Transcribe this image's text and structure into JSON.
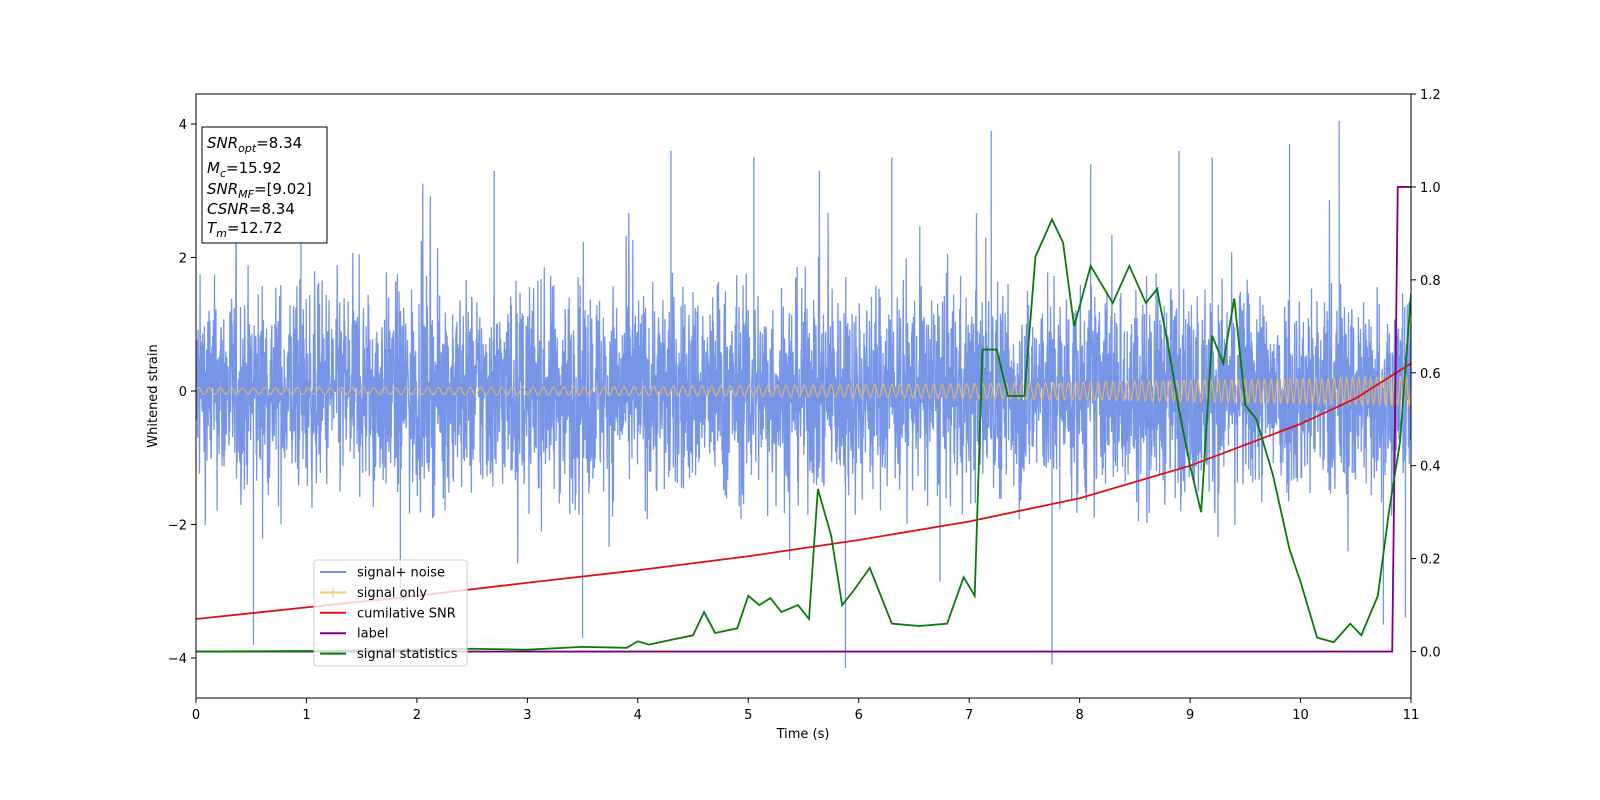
{
  "chart_data": {
    "type": "line",
    "title": "",
    "xlabel": "Time (s)",
    "ylabel": "Whitened strain",
    "y2label": "",
    "xlim": [
      0,
      11
    ],
    "ylim": [
      -4.6,
      4.45
    ],
    "y2lim": [
      -0.1,
      1.2
    ],
    "xticks": [
      "0",
      "1",
      "2",
      "3",
      "4",
      "5",
      "6",
      "7",
      "8",
      "9",
      "10",
      "11"
    ],
    "yticks": [
      "−4",
      "−2",
      "0",
      "2",
      "4"
    ],
    "y2ticks": [
      "0.0",
      "0.2",
      "0.4",
      "0.6",
      "0.8",
      "1.0",
      "1.2"
    ],
    "grid": false,
    "legend_position": "lower-left",
    "annotation": {
      "lines": [
        {
          "sym": "SNR",
          "sub": "opt",
          "val": "=8.34"
        },
        {
          "sym": "M",
          "sub": "c",
          "val": "=15.92"
        },
        {
          "sym": "SNR",
          "sub": "MF",
          "val": "=[9.02]"
        },
        {
          "sym": "CSNR",
          "sub": "",
          "val": "=8.34"
        },
        {
          "sym": "T",
          "sub": "m",
          "val": "=12.72"
        }
      ]
    },
    "series": [
      {
        "name": "signal+ noise",
        "axis": "left",
        "color": "#6f8fe6",
        "kind": "noise",
        "envelope": {
          "typical_min": -1.8,
          "typical_max": 1.8
        },
        "spikes": [
          [
            0.52,
            -3.8
          ],
          [
            0.95,
            2.6
          ],
          [
            1.85,
            -3.0
          ],
          [
            2.7,
            3.3
          ],
          [
            3.5,
            -3.7
          ],
          [
            4.3,
            3.6
          ],
          [
            5.05,
            3.5
          ],
          [
            5.88,
            -4.15
          ],
          [
            6.3,
            3.5
          ],
          [
            7.2,
            3.9
          ],
          [
            7.75,
            -4.1
          ],
          [
            8.1,
            3.4
          ],
          [
            8.9,
            3.6
          ],
          [
            9.2,
            3.5
          ],
          [
            9.9,
            3.7
          ],
          [
            10.35,
            4.05
          ],
          [
            10.75,
            -3.5
          ],
          [
            10.95,
            -3.4
          ]
        ]
      },
      {
        "name": "signal only",
        "axis": "left",
        "color": "#f5b85a",
        "kind": "chirp",
        "amplitude_start": 0.05,
        "amplitude_end": 0.22
      },
      {
        "name": "cumilative SNR",
        "axis": "right",
        "color": "#e01010",
        "points": [
          [
            0,
            0.07
          ],
          [
            1,
            0.095
          ],
          [
            2,
            0.12
          ],
          [
            3,
            0.148
          ],
          [
            4,
            0.175
          ],
          [
            5,
            0.205
          ],
          [
            6,
            0.24
          ],
          [
            7,
            0.28
          ],
          [
            8,
            0.33
          ],
          [
            9,
            0.4
          ],
          [
            10,
            0.49
          ],
          [
            10.5,
            0.545
          ],
          [
            11,
            0.62
          ]
        ]
      },
      {
        "name": "label",
        "axis": "right",
        "color": "#800080",
        "points": [
          [
            0,
            0.0
          ],
          [
            10.83,
            0.0
          ],
          [
            10.88,
            1.0
          ],
          [
            11,
            1.0
          ]
        ]
      },
      {
        "name": "signal statistics",
        "axis": "right",
        "color": "#0a7a0a",
        "points": [
          [
            0,
            0.0
          ],
          [
            1,
            0.001
          ],
          [
            2,
            0.004
          ],
          [
            2.5,
            0.006
          ],
          [
            3,
            0.004
          ],
          [
            3.5,
            0.01
          ],
          [
            3.9,
            0.008
          ],
          [
            4.0,
            0.022
          ],
          [
            4.1,
            0.015
          ],
          [
            4.3,
            0.025
          ],
          [
            4.5,
            0.035
          ],
          [
            4.6,
            0.085
          ],
          [
            4.7,
            0.04
          ],
          [
            4.9,
            0.05
          ],
          [
            5.0,
            0.12
          ],
          [
            5.1,
            0.1
          ],
          [
            5.2,
            0.115
          ],
          [
            5.3,
            0.085
          ],
          [
            5.45,
            0.1
          ],
          [
            5.55,
            0.07
          ],
          [
            5.63,
            0.35
          ],
          [
            5.75,
            0.25
          ],
          [
            5.85,
            0.1
          ],
          [
            5.95,
            0.13
          ],
          [
            6.1,
            0.18
          ],
          [
            6.3,
            0.06
          ],
          [
            6.55,
            0.055
          ],
          [
            6.8,
            0.06
          ],
          [
            6.95,
            0.16
          ],
          [
            7.05,
            0.12
          ],
          [
            7.12,
            0.65
          ],
          [
            7.25,
            0.65
          ],
          [
            7.35,
            0.55
          ],
          [
            7.5,
            0.55
          ],
          [
            7.6,
            0.85
          ],
          [
            7.75,
            0.93
          ],
          [
            7.85,
            0.88
          ],
          [
            7.95,
            0.7
          ],
          [
            8.1,
            0.83
          ],
          [
            8.3,
            0.75
          ],
          [
            8.45,
            0.83
          ],
          [
            8.6,
            0.75
          ],
          [
            8.7,
            0.78
          ],
          [
            8.8,
            0.66
          ],
          [
            8.9,
            0.52
          ],
          [
            9.0,
            0.4
          ],
          [
            9.1,
            0.3
          ],
          [
            9.2,
            0.68
          ],
          [
            9.3,
            0.62
          ],
          [
            9.4,
            0.76
          ],
          [
            9.5,
            0.53
          ],
          [
            9.6,
            0.5
          ],
          [
            9.75,
            0.38
          ],
          [
            9.9,
            0.22
          ],
          [
            10.0,
            0.15
          ],
          [
            10.15,
            0.03
          ],
          [
            10.3,
            0.02
          ],
          [
            10.45,
            0.06
          ],
          [
            10.55,
            0.035
          ],
          [
            10.7,
            0.12
          ],
          [
            10.8,
            0.3
          ],
          [
            10.9,
            0.45
          ],
          [
            11.0,
            0.77
          ]
        ]
      }
    ]
  }
}
